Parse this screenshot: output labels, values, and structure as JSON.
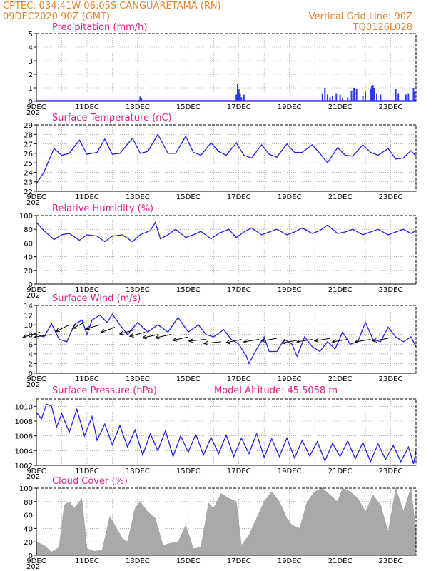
{
  "header": {
    "line1_left": "CPTEC:   034:41W-06:05S   CANGUARETAMA (RN)",
    "line2_left": "09DEC2020 90Z (GMT)",
    "line2_right": "Vertical Grid Line: 90Z",
    "line3_right": "TQ0126L028"
  },
  "x_axis": {
    "tick_labels": [
      "9DEC",
      "11DEC",
      "13DEC",
      "15DEC",
      "17DEC",
      "19DEC",
      "21DEC",
      "23DEC"
    ],
    "sub_label": "202"
  },
  "chart_data": [
    {
      "id": "precip",
      "type": "bar",
      "title": "Precipitation (mm/h)",
      "ylim": [
        0,
        5
      ],
      "yticks": [
        0,
        1,
        2,
        3,
        4,
        5
      ],
      "xlim_days": [
        0,
        15
      ],
      "points": [
        [
          1.95,
          0.05
        ],
        [
          4.05,
          0.12
        ],
        [
          4.1,
          0.35
        ],
        [
          4.15,
          0.2
        ],
        [
          7.9,
          0.5
        ],
        [
          7.95,
          1.3
        ],
        [
          8.0,
          0.9
        ],
        [
          8.05,
          0.6
        ],
        [
          8.1,
          0.3
        ],
        [
          8.2,
          0.5
        ],
        [
          11.3,
          0.6
        ],
        [
          11.4,
          1.0
        ],
        [
          11.5,
          0.5
        ],
        [
          11.6,
          0.3
        ],
        [
          11.7,
          0.4
        ],
        [
          11.85,
          0.6
        ],
        [
          12.0,
          0.5
        ],
        [
          12.1,
          0.2
        ],
        [
          12.3,
          0.3
        ],
        [
          12.45,
          0.8
        ],
        [
          12.55,
          1.0
        ],
        [
          12.65,
          0.9
        ],
        [
          12.9,
          0.4
        ],
        [
          13.0,
          0.7
        ],
        [
          13.2,
          0.9
        ],
        [
          13.25,
          1.1
        ],
        [
          13.3,
          1.2
        ],
        [
          13.35,
          1.0
        ],
        [
          13.45,
          0.6
        ],
        [
          13.6,
          0.5
        ],
        [
          14.2,
          0.9
        ],
        [
          14.3,
          0.6
        ],
        [
          14.6,
          0.5
        ],
        [
          14.7,
          0.6
        ],
        [
          14.9,
          1.0
        ],
        [
          14.95,
          0.7
        ]
      ]
    },
    {
      "id": "temp",
      "type": "line",
      "title": "Surface Temperature (nC)",
      "ylim": [
        22,
        29
      ],
      "yticks": [
        22,
        23,
        24,
        25,
        26,
        27,
        28,
        29
      ],
      "xlim_days": [
        0,
        15
      ],
      "points": [
        [
          0,
          22.8
        ],
        [
          0.3,
          24.0
        ],
        [
          0.5,
          25.3
        ],
        [
          0.7,
          26.5
        ],
        [
          1.0,
          25.8
        ],
        [
          1.3,
          26.0
        ],
        [
          1.7,
          27.4
        ],
        [
          2.0,
          25.9
        ],
        [
          2.4,
          26.1
        ],
        [
          2.7,
          27.5
        ],
        [
          3.0,
          25.9
        ],
        [
          3.3,
          26.0
        ],
        [
          3.8,
          27.6
        ],
        [
          4.1,
          26.0
        ],
        [
          4.4,
          26.2
        ],
        [
          4.8,
          28.0
        ],
        [
          5.2,
          26.0
        ],
        [
          5.5,
          26.0
        ],
        [
          5.9,
          27.8
        ],
        [
          6.2,
          26.1
        ],
        [
          6.5,
          25.8
        ],
        [
          6.9,
          27.1
        ],
        [
          7.2,
          26.2
        ],
        [
          7.5,
          25.8
        ],
        [
          7.9,
          27.1
        ],
        [
          8.2,
          25.8
        ],
        [
          8.5,
          25.5
        ],
        [
          8.9,
          26.9
        ],
        [
          9.2,
          25.9
        ],
        [
          9.5,
          25.6
        ],
        [
          9.9,
          27.0
        ],
        [
          10.2,
          26.1
        ],
        [
          10.5,
          26.1
        ],
        [
          10.9,
          26.9
        ],
        [
          11.2,
          26.0
        ],
        [
          11.5,
          25.0
        ],
        [
          11.9,
          26.6
        ],
        [
          12.2,
          25.8
        ],
        [
          12.5,
          25.7
        ],
        [
          12.9,
          26.9
        ],
        [
          13.2,
          26.1
        ],
        [
          13.5,
          25.8
        ],
        [
          13.9,
          26.5
        ],
        [
          14.2,
          25.4
        ],
        [
          14.5,
          25.5
        ],
        [
          14.8,
          26.3
        ],
        [
          15.0,
          25.7
        ]
      ]
    },
    {
      "id": "rh",
      "type": "line",
      "title": "Relative Humidity (%)",
      "ylim": [
        0,
        100
      ],
      "yticks": [
        0,
        20,
        40,
        60,
        80,
        100
      ],
      "xlim_days": [
        0,
        15
      ],
      "points": [
        [
          0,
          90
        ],
        [
          0.3,
          78
        ],
        [
          0.7,
          65
        ],
        [
          1.0,
          72
        ],
        [
          1.3,
          74
        ],
        [
          1.7,
          64
        ],
        [
          2.0,
          72
        ],
        [
          2.4,
          70
        ],
        [
          2.7,
          62
        ],
        [
          3.0,
          70
        ],
        [
          3.4,
          72
        ],
        [
          3.8,
          62
        ],
        [
          4.1,
          72
        ],
        [
          4.5,
          78
        ],
        [
          4.7,
          90
        ],
        [
          4.9,
          66
        ],
        [
          5.2,
          72
        ],
        [
          5.5,
          80
        ],
        [
          5.9,
          68
        ],
        [
          6.2,
          72
        ],
        [
          6.5,
          77
        ],
        [
          6.9,
          66
        ],
        [
          7.2,
          74
        ],
        [
          7.6,
          80
        ],
        [
          7.9,
          68
        ],
        [
          8.2,
          76
        ],
        [
          8.5,
          82
        ],
        [
          8.9,
          72
        ],
        [
          9.2,
          76
        ],
        [
          9.5,
          80
        ],
        [
          9.9,
          72
        ],
        [
          10.2,
          76
        ],
        [
          10.5,
          82
        ],
        [
          10.9,
          74
        ],
        [
          11.2,
          78
        ],
        [
          11.5,
          86
        ],
        [
          11.9,
          74
        ],
        [
          12.2,
          76
        ],
        [
          12.5,
          80
        ],
        [
          12.9,
          72
        ],
        [
          13.2,
          76
        ],
        [
          13.5,
          80
        ],
        [
          13.9,
          72
        ],
        [
          14.2,
          76
        ],
        [
          14.5,
          80
        ],
        [
          14.8,
          74
        ],
        [
          15.0,
          78
        ]
      ]
    },
    {
      "id": "wind",
      "type": "line",
      "title": "Surface Wind (m/s)",
      "ylim": [
        0,
        14
      ],
      "yticks": [
        0,
        2,
        4,
        6,
        8,
        10,
        12,
        14
      ],
      "xlim_days": [
        0,
        15
      ],
      "points": [
        [
          0,
          8.0
        ],
        [
          0.3,
          7.5
        ],
        [
          0.6,
          10.2
        ],
        [
          0.9,
          7.0
        ],
        [
          1.2,
          6.5
        ],
        [
          1.5,
          10.0
        ],
        [
          1.8,
          11.0
        ],
        [
          2.0,
          8.0
        ],
        [
          2.2,
          11.0
        ],
        [
          2.5,
          12.0
        ],
        [
          2.8,
          10.5
        ],
        [
          3.0,
          12.2
        ],
        [
          3.3,
          10.0
        ],
        [
          3.6,
          8.0
        ],
        [
          4.0,
          10.5
        ],
        [
          4.4,
          8.5
        ],
        [
          4.8,
          10.0
        ],
        [
          5.2,
          8.5
        ],
        [
          5.6,
          11.5
        ],
        [
          6.0,
          8.5
        ],
        [
          6.4,
          10.0
        ],
        [
          6.7,
          8.0
        ],
        [
          7.0,
          7.5
        ],
        [
          7.4,
          9.0
        ],
        [
          7.7,
          7.0
        ],
        [
          8.0,
          6.0
        ],
        [
          8.3,
          3.5
        ],
        [
          8.4,
          2.0
        ],
        [
          8.7,
          5.0
        ],
        [
          9.0,
          7.5
        ],
        [
          9.2,
          4.5
        ],
        [
          9.5,
          4.5
        ],
        [
          9.8,
          7.0
        ],
        [
          10.1,
          6.0
        ],
        [
          10.3,
          3.5
        ],
        [
          10.6,
          7.5
        ],
        [
          10.9,
          5.5
        ],
        [
          11.2,
          4.5
        ],
        [
          11.5,
          6.5
        ],
        [
          11.8,
          5.0
        ],
        [
          12.1,
          8.5
        ],
        [
          12.4,
          6.0
        ],
        [
          12.7,
          6.5
        ],
        [
          13.0,
          10.5
        ],
        [
          13.3,
          7.0
        ],
        [
          13.6,
          6.5
        ],
        [
          13.9,
          9.5
        ],
        [
          14.2,
          7.5
        ],
        [
          14.5,
          6.5
        ],
        [
          14.8,
          7.5
        ],
        [
          15.0,
          5.5
        ]
      ],
      "arrows": [
        [
          0.15,
          8.5,
          -1.0,
          -0.6
        ],
        [
          0.6,
          8.0,
          -1.0,
          -0.3
        ],
        [
          1.3,
          10.0,
          -0.8,
          -0.8
        ],
        [
          1.9,
          10.5,
          -0.7,
          -0.7
        ],
        [
          2.5,
          10.0,
          -0.8,
          -0.5
        ],
        [
          3.1,
          9.5,
          -0.8,
          -0.6
        ],
        [
          3.9,
          9.0,
          -0.9,
          -0.5
        ],
        [
          4.3,
          8.5,
          -0.9,
          -0.5
        ],
        [
          4.8,
          8.0,
          -0.9,
          -0.4
        ],
        [
          5.3,
          8.0,
          -0.9,
          -0.4
        ],
        [
          6.0,
          7.5,
          -0.9,
          -0.4
        ],
        [
          6.7,
          7.0,
          -1.0,
          -0.2
        ],
        [
          7.3,
          6.5,
          -1.0,
          -0.2
        ],
        [
          8.1,
          7.0,
          -0.9,
          -0.4
        ],
        [
          8.8,
          7.0,
          -0.9,
          -0.3
        ],
        [
          9.5,
          7.2,
          -0.9,
          -0.3
        ],
        [
          10.3,
          6.8,
          -0.9,
          -0.3
        ],
        [
          10.9,
          7.0,
          -0.9,
          -0.3
        ],
        [
          11.6,
          7.2,
          -0.9,
          -0.3
        ],
        [
          12.3,
          7.0,
          -0.9,
          -0.3
        ],
        [
          13.2,
          7.0,
          -0.9,
          -0.3
        ],
        [
          13.9,
          7.2,
          -0.9,
          -0.3
        ]
      ]
    },
    {
      "id": "pressure",
      "type": "line",
      "title": "Surface Pressure (hPa)",
      "annotation": "Model Altitude: 45.5058  m",
      "ylim": [
        1002,
        1011
      ],
      "yticks": [
        1002,
        1004,
        1006,
        1008,
        1010
      ],
      "xlim_days": [
        0,
        15
      ],
      "points": [
        [
          0,
          1009.2
        ],
        [
          0.2,
          1008.3
        ],
        [
          0.4,
          1010.3
        ],
        [
          0.6,
          1010.0
        ],
        [
          0.8,
          1007.2
        ],
        [
          1.0,
          1009.0
        ],
        [
          1.3,
          1006.5
        ],
        [
          1.6,
          1009.6
        ],
        [
          1.9,
          1006.0
        ],
        [
          2.2,
          1008.6
        ],
        [
          2.4,
          1005.4
        ],
        [
          2.7,
          1007.6
        ],
        [
          3.0,
          1004.8
        ],
        [
          3.3,
          1007.4
        ],
        [
          3.6,
          1004.5
        ],
        [
          3.9,
          1006.8
        ],
        [
          4.2,
          1003.4
        ],
        [
          4.5,
          1006.3
        ],
        [
          4.8,
          1004.0
        ],
        [
          5.1,
          1006.7
        ],
        [
          5.4,
          1003.2
        ],
        [
          5.7,
          1006.0
        ],
        [
          6.0,
          1003.8
        ],
        [
          6.3,
          1006.2
        ],
        [
          6.6,
          1003.4
        ],
        [
          6.9,
          1005.8
        ],
        [
          7.2,
          1003.6
        ],
        [
          7.5,
          1006.1
        ],
        [
          7.8,
          1003.2
        ],
        [
          8.1,
          1005.7
        ],
        [
          8.4,
          1003.6
        ],
        [
          8.7,
          1006.3
        ],
        [
          9.0,
          1003.1
        ],
        [
          9.3,
          1005.6
        ],
        [
          9.6,
          1003.2
        ],
        [
          9.9,
          1005.7
        ],
        [
          10.2,
          1003.0
        ],
        [
          10.5,
          1005.4
        ],
        [
          10.8,
          1003.3
        ],
        [
          11.1,
          1005.2
        ],
        [
          11.4,
          1002.6
        ],
        [
          11.7,
          1005.0
        ],
        [
          12.0,
          1003.2
        ],
        [
          12.3,
          1005.3
        ],
        [
          12.6,
          1002.9
        ],
        [
          12.9,
          1005.1
        ],
        [
          13.2,
          1002.5
        ],
        [
          13.5,
          1004.9
        ],
        [
          13.8,
          1002.8
        ],
        [
          14.1,
          1004.7
        ],
        [
          14.4,
          1002.5
        ],
        [
          14.7,
          1004.5
        ],
        [
          14.9,
          1002.2
        ],
        [
          15.0,
          1004.0
        ]
      ]
    },
    {
      "id": "cloud",
      "type": "area",
      "title": "Cloud Cover (%)",
      "ylim": [
        0,
        100
      ],
      "yticks": [
        0,
        20,
        40,
        60,
        80,
        100
      ],
      "xlim_days": [
        0,
        15
      ],
      "points": [
        [
          0,
          20
        ],
        [
          0.3,
          15
        ],
        [
          0.6,
          5
        ],
        [
          0.9,
          12
        ],
        [
          1.1,
          75
        ],
        [
          1.3,
          80
        ],
        [
          1.5,
          70
        ],
        [
          1.8,
          85
        ],
        [
          2.0,
          10
        ],
        [
          2.3,
          6
        ],
        [
          2.6,
          8
        ],
        [
          2.9,
          58
        ],
        [
          3.1,
          45
        ],
        [
          3.4,
          25
        ],
        [
          3.6,
          20
        ],
        [
          3.9,
          70
        ],
        [
          4.1,
          80
        ],
        [
          4.4,
          65
        ],
        [
          4.7,
          55
        ],
        [
          5.0,
          15
        ],
        [
          5.3,
          18
        ],
        [
          5.6,
          20
        ],
        [
          5.9,
          45
        ],
        [
          6.2,
          10
        ],
        [
          6.5,
          12
        ],
        [
          6.8,
          78
        ],
        [
          7.0,
          70
        ],
        [
          7.3,
          92
        ],
        [
          7.6,
          85
        ],
        [
          7.9,
          80
        ],
        [
          8.1,
          15
        ],
        [
          8.4,
          30
        ],
        [
          8.7,
          55
        ],
        [
          9.0,
          80
        ],
        [
          9.3,
          95
        ],
        [
          9.6,
          80
        ],
        [
          9.9,
          55
        ],
        [
          10.1,
          45
        ],
        [
          10.4,
          40
        ],
        [
          10.7,
          80
        ],
        [
          11.0,
          95
        ],
        [
          11.3,
          100
        ],
        [
          11.6,
          90
        ],
        [
          11.9,
          80
        ],
        [
          12.1,
          100
        ],
        [
          12.4,
          95
        ],
        [
          12.7,
          85
        ],
        [
          13.0,
          65
        ],
        [
          13.3,
          90
        ],
        [
          13.6,
          75
        ],
        [
          13.9,
          35
        ],
        [
          14.2,
          100
        ],
        [
          14.5,
          65
        ],
        [
          14.8,
          100
        ],
        [
          15.0,
          35
        ]
      ]
    }
  ],
  "colors": {
    "header": "#e8822a",
    "panel_title": "#e0208a",
    "line": "#2020e8",
    "bar": "#2b3be0",
    "area": "#a9a9a9",
    "grid": "#888888"
  }
}
